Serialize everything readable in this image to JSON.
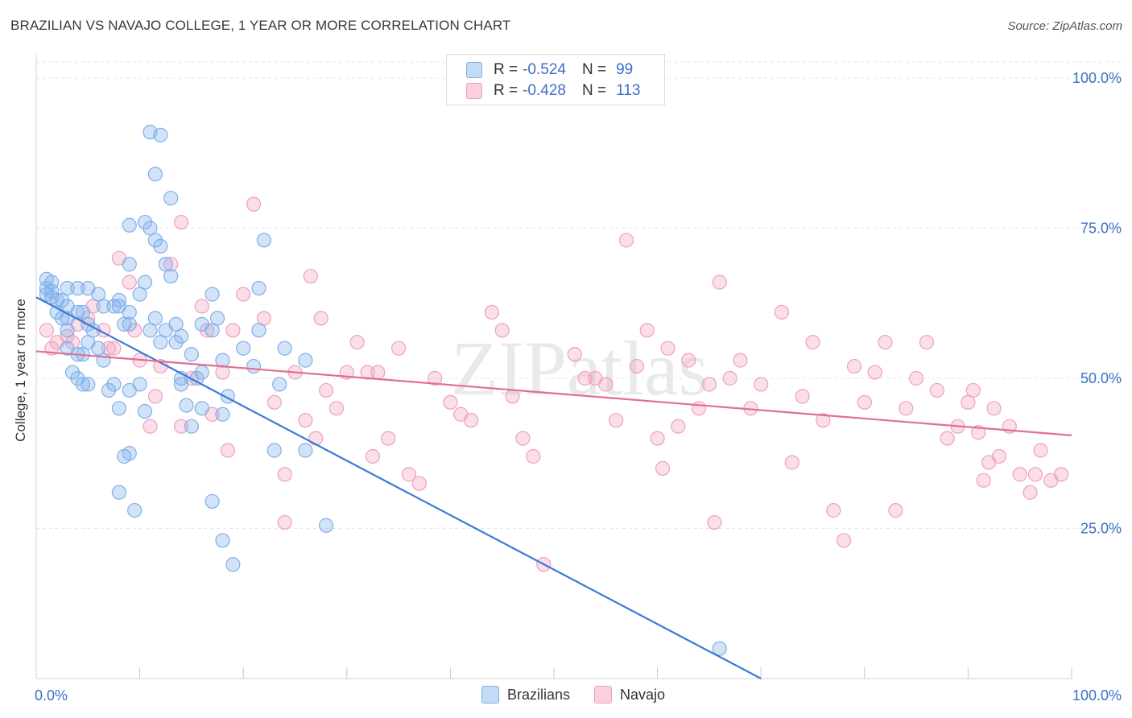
{
  "title": "BRAZILIAN VS NAVAJO COLLEGE, 1 YEAR OR MORE CORRELATION CHART",
  "source": "Source: ZipAtlas.com",
  "watermark": "ZIPatlas",
  "legend": {
    "r_label": "R =",
    "n_label": "N =",
    "rows": [
      {
        "series": "Brazilians",
        "r": "-0.524",
        "n": "99",
        "color": "#7eb0ea",
        "fill": "#c4dbf6"
      },
      {
        "series": "Navajo",
        "r": "-0.428",
        "n": "113",
        "color": "#f0a0bc",
        "fill": "#fbd0de"
      }
    ]
  },
  "bottom_legend": [
    "Brazilians",
    "Navajo"
  ],
  "chart_data": {
    "type": "scatter",
    "title": "BRAZILIAN VS NAVAJO COLLEGE, 1 YEAR OR MORE CORRELATION CHART",
    "xlabel": "",
    "ylabel": "College, 1 year or more",
    "xlim": [
      0,
      100
    ],
    "ylim": [
      0,
      100
    ],
    "x_tick_labels": [
      "0.0%",
      "100.0%"
    ],
    "y_tick_labels": [
      "25.0%",
      "50.0%",
      "75.0%",
      "100.0%"
    ],
    "y_ticks": [
      25,
      50,
      75,
      100
    ],
    "series": [
      {
        "name": "Brazilians",
        "color": "#3a7ad8",
        "point_color": "#7eb0ea",
        "trend": {
          "x": [
            0,
            70
          ],
          "y": [
            63.5,
            0
          ]
        },
        "points": [
          [
            1,
            66.5
          ],
          [
            1,
            65
          ],
          [
            1,
            64
          ],
          [
            1.5,
            64.5
          ],
          [
            1.5,
            63.5
          ],
          [
            2,
            63
          ],
          [
            1.5,
            66
          ],
          [
            2.5,
            63
          ],
          [
            3,
            65
          ],
          [
            3,
            62
          ],
          [
            2,
            61
          ],
          [
            2.5,
            60
          ],
          [
            3,
            60
          ],
          [
            4,
            61
          ],
          [
            4.5,
            61
          ],
          [
            5,
            59
          ],
          [
            5.5,
            58
          ],
          [
            4,
            65
          ],
          [
            5,
            65
          ],
          [
            6,
            64
          ],
          [
            6.5,
            62
          ],
          [
            7.5,
            62
          ],
          [
            8,
            62
          ],
          [
            8,
            63
          ],
          [
            8.5,
            59
          ],
          [
            9,
            59
          ],
          [
            9,
            61
          ],
          [
            10,
            64
          ],
          [
            10.5,
            66
          ],
          [
            11,
            58
          ],
          [
            11.5,
            60
          ],
          [
            12,
            56
          ],
          [
            12.5,
            58
          ],
          [
            13.5,
            56
          ],
          [
            14,
            57
          ],
          [
            15,
            54
          ],
          [
            15.5,
            50
          ],
          [
            16,
            51
          ],
          [
            16,
            59
          ],
          [
            17,
            58
          ],
          [
            17,
            64
          ],
          [
            17.5,
            60
          ],
          [
            18,
            53
          ],
          [
            18.5,
            47
          ],
          [
            20,
            55
          ],
          [
            21,
            52
          ],
          [
            21.5,
            58
          ],
          [
            22,
            73
          ],
          [
            23,
            38
          ],
          [
            23.5,
            49
          ],
          [
            24,
            55
          ],
          [
            26,
            53
          ],
          [
            3,
            58
          ],
          [
            3,
            55
          ],
          [
            3.5,
            51
          ],
          [
            4,
            50
          ],
          [
            4.5,
            49
          ],
          [
            5,
            49
          ],
          [
            4,
            54
          ],
          [
            4.5,
            54
          ],
          [
            5,
            56
          ],
          [
            6,
            55
          ],
          [
            6.5,
            53
          ],
          [
            7,
            48
          ],
          [
            7.5,
            49
          ],
          [
            8,
            45
          ],
          [
            8.5,
            37
          ],
          [
            9,
            37.5
          ],
          [
            8,
            31
          ],
          [
            9.5,
            28
          ],
          [
            9,
            48
          ],
          [
            10,
            49
          ],
          [
            10.5,
            44.5
          ],
          [
            11.5,
            73
          ],
          [
            11,
            75
          ],
          [
            10.5,
            76
          ],
          [
            12,
            72
          ],
          [
            12.5,
            69
          ],
          [
            9,
            69
          ],
          [
            9,
            75.5
          ],
          [
            11,
            91
          ],
          [
            12,
            90.5
          ],
          [
            11.5,
            84
          ],
          [
            13,
            80
          ],
          [
            14,
            49
          ],
          [
            14.5,
            45.5
          ],
          [
            15,
            42
          ],
          [
            14,
            50
          ],
          [
            16,
            45
          ],
          [
            18,
            44
          ],
          [
            17,
            29.5
          ],
          [
            18,
            23
          ],
          [
            19,
            19
          ],
          [
            26,
            38
          ],
          [
            28,
            25.5
          ],
          [
            21.5,
            65
          ],
          [
            13,
            67
          ],
          [
            13.5,
            59
          ],
          [
            66,
            5
          ]
        ]
      },
      {
        "name": "Navajo",
        "color": "#e0708f",
        "point_color": "#f0a0bc",
        "trend": {
          "x": [
            0,
            100
          ],
          "y": [
            54.5,
            40.5
          ]
        },
        "points": [
          [
            1,
            58
          ],
          [
            1.5,
            55
          ],
          [
            2,
            56
          ],
          [
            3,
            57
          ],
          [
            3.5,
            56
          ],
          [
            4,
            59
          ],
          [
            5,
            60
          ],
          [
            5.5,
            62
          ],
          [
            6.5,
            58
          ],
          [
            7,
            55
          ],
          [
            7.5,
            55
          ],
          [
            8,
            70
          ],
          [
            9,
            66
          ],
          [
            9.5,
            58
          ],
          [
            10,
            53
          ],
          [
            11,
            42
          ],
          [
            11.5,
            47
          ],
          [
            12,
            52
          ],
          [
            13,
            69
          ],
          [
            14,
            76
          ],
          [
            14,
            42
          ],
          [
            15,
            50
          ],
          [
            16,
            62
          ],
          [
            16.5,
            58
          ],
          [
            17,
            44
          ],
          [
            18,
            51
          ],
          [
            18.5,
            38
          ],
          [
            19,
            58
          ],
          [
            20,
            64
          ],
          [
            21,
            79
          ],
          [
            22,
            60
          ],
          [
            23,
            46
          ],
          [
            24,
            34
          ],
          [
            24,
            26
          ],
          [
            25,
            51
          ],
          [
            26,
            43
          ],
          [
            26.5,
            67
          ],
          [
            27,
            40
          ],
          [
            27.5,
            60
          ],
          [
            28,
            48
          ],
          [
            29,
            45
          ],
          [
            30,
            51
          ],
          [
            31,
            56
          ],
          [
            32,
            51
          ],
          [
            32.5,
            37
          ],
          [
            33,
            51
          ],
          [
            34,
            40
          ],
          [
            35,
            55
          ],
          [
            36,
            34
          ],
          [
            37,
            32.5
          ],
          [
            38.5,
            50
          ],
          [
            40,
            46
          ],
          [
            41,
            44
          ],
          [
            42,
            43
          ],
          [
            44,
            61
          ],
          [
            45,
            58
          ],
          [
            46,
            47
          ],
          [
            47,
            40
          ],
          [
            48,
            37
          ],
          [
            49,
            19
          ],
          [
            52,
            54
          ],
          [
            53,
            50
          ],
          [
            54,
            50
          ],
          [
            55,
            49
          ],
          [
            57,
            73
          ],
          [
            56,
            43
          ],
          [
            58,
            52
          ],
          [
            59,
            58
          ],
          [
            60,
            40
          ],
          [
            60.5,
            35
          ],
          [
            61,
            55
          ],
          [
            62,
            42
          ],
          [
            63,
            53
          ],
          [
            64,
            45
          ],
          [
            65,
            49
          ],
          [
            65.5,
            26
          ],
          [
            66,
            66
          ],
          [
            67,
            50
          ],
          [
            68,
            53
          ],
          [
            69,
            45
          ],
          [
            70,
            49
          ],
          [
            72,
            61
          ],
          [
            73,
            36
          ],
          [
            74,
            47
          ],
          [
            75,
            56
          ],
          [
            76,
            43
          ],
          [
            77,
            28
          ],
          [
            78,
            23
          ],
          [
            79,
            52
          ],
          [
            80,
            46
          ],
          [
            81,
            51
          ],
          [
            82,
            56
          ],
          [
            83,
            28
          ],
          [
            84,
            45
          ],
          [
            85,
            50
          ],
          [
            86,
            56
          ],
          [
            87,
            48
          ],
          [
            88,
            40
          ],
          [
            89,
            42
          ],
          [
            90,
            46
          ],
          [
            90.5,
            48
          ],
          [
            91,
            41
          ],
          [
            91.5,
            33
          ],
          [
            92,
            36
          ],
          [
            92.5,
            45
          ],
          [
            93,
            37
          ],
          [
            94,
            42
          ],
          [
            95,
            34
          ],
          [
            96,
            31
          ],
          [
            96.5,
            34
          ],
          [
            97,
            38
          ],
          [
            98,
            33
          ],
          [
            99,
            34
          ]
        ]
      }
    ]
  }
}
